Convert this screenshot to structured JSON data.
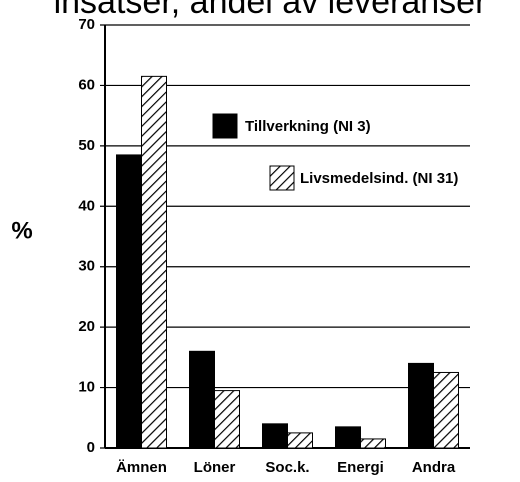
{
  "chart_data": {
    "type": "bar",
    "title": "insatser, andel av leveranser",
    "y_label": "%",
    "categories": [
      "Ämnen",
      "Löner",
      "Soc.k.",
      "Energi",
      "Andra"
    ],
    "series": [
      {
        "name": "Tillverkning (NI 3)",
        "color": "#000000",
        "hatch": false,
        "values": [
          48.5,
          16,
          4,
          3.5,
          14
        ]
      },
      {
        "name": "Livsmedelsind. (NI 31)",
        "color": "#000000",
        "hatch": true,
        "values": [
          61.5,
          9.5,
          2.5,
          1.5,
          12.5
        ]
      }
    ],
    "ylim": [
      0,
      70
    ],
    "yticks": [
      0,
      10,
      20,
      30,
      40,
      50,
      60,
      70
    ],
    "grid": true
  }
}
